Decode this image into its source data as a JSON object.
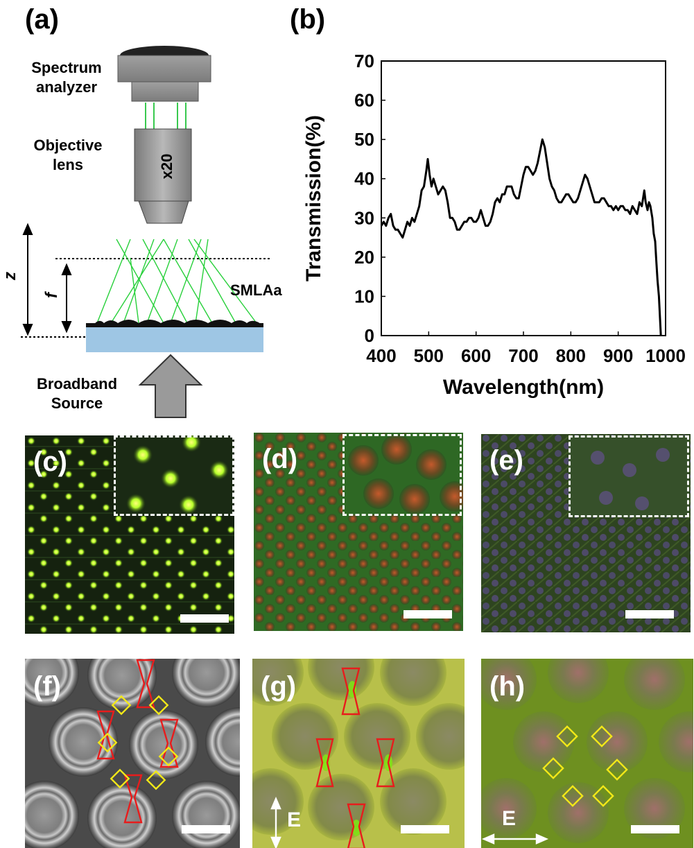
{
  "panels": {
    "a": {
      "label": "(a)"
    },
    "b": {
      "label": "(b)"
    },
    "c": {
      "label": "(c)"
    },
    "d": {
      "label": "(d)"
    },
    "e": {
      "label": "(e)"
    },
    "f": {
      "label": "(f)"
    },
    "g": {
      "label": "(g)"
    },
    "h": {
      "label": "(h)"
    }
  },
  "setup": {
    "spectrum_analyzer": [
      "Spectrum",
      "analyzer"
    ],
    "objective_lens": [
      "Objective",
      "lens"
    ],
    "magnification": "x20",
    "z_label": "z",
    "f_label": "f",
    "smla_label": "SMLAa",
    "source": [
      "Broadband",
      "Source"
    ]
  },
  "polarization": {
    "g_label": "E",
    "h_label": "E"
  },
  "chart_data": {
    "type": "line",
    "xlabel": "Wavelength(nm)",
    "ylabel": "Transmission(%)",
    "xlim": [
      400,
      1000
    ],
    "ylim": [
      0,
      70
    ],
    "xticks": [
      "400",
      "500",
      "600",
      "700",
      "800",
      "900",
      "1000"
    ],
    "yticks": [
      "0",
      "10",
      "20",
      "30",
      "40",
      "50",
      "60",
      "70"
    ],
    "colors": {
      "line": "#000000"
    },
    "series": [
      {
        "x": [
          400,
          405,
          410,
          415,
          420,
          425,
          430,
          435,
          440,
          445,
          450,
          455,
          460,
          465,
          470,
          475,
          480,
          485,
          490,
          495,
          498,
          502,
          506,
          510,
          515,
          520,
          525,
          530,
          535,
          540,
          545,
          550,
          555,
          560,
          565,
          570,
          575,
          580,
          585,
          590,
          595,
          600,
          605,
          610,
          615,
          620,
          625,
          630,
          635,
          640,
          645,
          650,
          655,
          660,
          665,
          670,
          675,
          680,
          685,
          690,
          695,
          700,
          705,
          710,
          715,
          720,
          725,
          730,
          735,
          740,
          745,
          750,
          755,
          760,
          765,
          770,
          775,
          780,
          785,
          790,
          795,
          800,
          805,
          810,
          815,
          820,
          825,
          830,
          835,
          840,
          845,
          850,
          855,
          860,
          865,
          870,
          875,
          880,
          885,
          890,
          895,
          900,
          905,
          910,
          915,
          920,
          925,
          930,
          935,
          940,
          945,
          950,
          955,
          958,
          962,
          965,
          968,
          972,
          975,
          978,
          980,
          983,
          986,
          988,
          990
        ],
        "y": [
          28,
          29,
          28,
          30,
          31,
          28,
          27,
          27,
          26,
          25,
          27,
          29,
          28,
          30,
          29,
          31,
          33,
          37,
          38,
          42,
          45,
          41,
          38,
          40,
          38,
          36,
          37,
          38,
          37,
          34,
          30,
          30,
          29,
          27,
          27,
          28,
          29,
          29,
          30,
          30,
          29,
          29,
          30,
          32,
          30,
          28,
          28,
          29,
          31,
          34,
          35,
          34,
          36,
          36,
          38,
          38,
          38,
          36,
          35,
          35,
          38,
          41,
          43,
          43,
          42,
          41,
          42,
          44,
          47,
          50,
          48,
          44,
          40,
          38,
          37,
          35,
          34,
          34,
          35,
          36,
          36,
          35,
          34,
          34,
          35,
          37,
          39,
          41,
          40,
          38,
          36,
          34,
          34,
          34,
          35,
          35,
          34,
          33,
          33,
          32,
          33,
          32,
          33,
          33,
          32,
          32,
          31,
          33,
          32,
          31,
          34,
          33,
          37,
          34,
          32,
          34,
          33,
          30,
          26,
          24,
          20,
          14,
          10,
          5,
          0
        ]
      }
    ]
  }
}
